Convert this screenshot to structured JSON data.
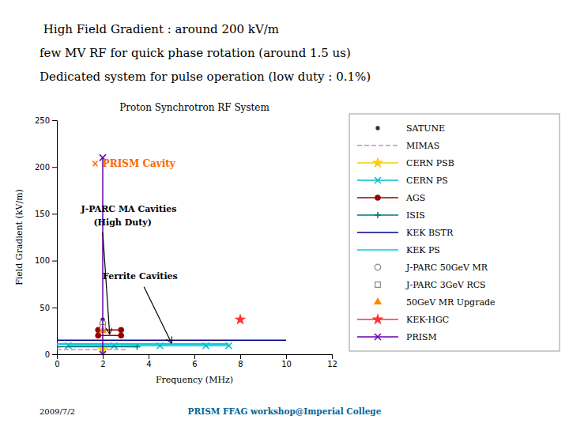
{
  "chart_data": {
    "type": "line",
    "title": "Proton Synchrotron RF System",
    "subtitle": [
      " High Field Gradient : around 200 kV/m",
      "few MV RF for quick phase rotation (around 1.5 us)",
      "Dedicated system for pulse operation (low duty : 0.1%)"
    ],
    "footer": [
      "2009/7/2",
      "PRISM FFAG workshop@Imperial College"
    ],
    "x_label": "Frequency (MHz)",
    "y_label": "Field Gradient (kV/m)",
    "xlim": [
      0,
      12
    ],
    "ylim": [
      0,
      250
    ],
    "xticks": [
      0,
      2,
      4,
      6,
      8,
      10,
      12
    ],
    "yticks": [
      0,
      50,
      100,
      150,
      200,
      250
    ],
    "grid": false,
    "legend": "right",
    "series": [
      {
        "name": "SATUNE",
        "color": "#333333",
        "marker": "point",
        "line_style": "none",
        "x": [
          2.0
        ],
        "values": [
          37
        ]
      },
      {
        "name": "MIMAS",
        "color": "#CC88CC",
        "marker": "none",
        "line_style": "dashed",
        "x": [
          0,
          3
        ],
        "values": [
          5,
          5
        ]
      },
      {
        "name": "CERN PSB",
        "color": "#FFCC00",
        "marker": "star",
        "line_style": "solid",
        "x": [
          2.0
        ],
        "values": [
          5
        ]
      },
      {
        "name": "CERN PS",
        "color": "#00BBCC",
        "marker": "x",
        "line_style": "solid",
        "x": [
          0.5,
          2.5,
          4.5,
          6.5,
          7.5
        ],
        "values": [
          9,
          9,
          9,
          9,
          9
        ]
      },
      {
        "name": "AGS",
        "color": "#990000",
        "marker": "circle",
        "line_style": "solid",
        "x": [
          1.8,
          2.8,
          null,
          1.8,
          2.8
        ],
        "values": [
          20,
          20,
          null,
          26,
          26
        ]
      },
      {
        "name": "ISIS",
        "color": "#007777",
        "marker": "plus",
        "line_style": "solid",
        "x": [
          0,
          3.5
        ],
        "values": [
          8,
          8
        ]
      },
      {
        "name": "KEK BSTR",
        "color": "#000088",
        "marker": "none",
        "line_style": "solid",
        "x": [
          0,
          10
        ],
        "values": [
          15,
          15
        ]
      },
      {
        "name": "KEK PS",
        "color": "#00CCDD",
        "marker": "none",
        "line_style": "solid",
        "x": [
          0,
          7.5
        ],
        "values": [
          11,
          11
        ]
      },
      {
        "name": "J-PARC 50GeV MR",
        "color": "#888888",
        "marker": "circle-open",
        "line_style": "none",
        "x": [
          2.0
        ],
        "values": [
          33
        ]
      },
      {
        "name": "J-PARC 3GeV RCS",
        "color": "#888888",
        "marker": "square-open",
        "line_style": "none",
        "x": [
          2.0
        ],
        "values": [
          29
        ]
      },
      {
        "name": "50GeV MR Upgrade",
        "color": "#FF8800",
        "marker": "triangle",
        "line_style": "none",
        "x": [
          2.0
        ],
        "values": [
          25
        ]
      },
      {
        "name": "KEK-HGC",
        "color": "#FF3333",
        "marker": "star",
        "line_style": "solid",
        "x": [
          8.0
        ],
        "values": [
          37
        ]
      },
      {
        "name": "PRISM",
        "color": "#6600AA",
        "marker": "x",
        "line_style": "solid",
        "x": [
          2.0,
          2.0
        ],
        "values": [
          0,
          210
        ]
      }
    ],
    "annotations": [
      {
        "text": "× PRISM Cavity",
        "x": 1.5,
        "y": 200,
        "color": "#FF6600"
      },
      {
        "text": "J-PARC MA Cavities",
        "x": 1.05,
        "y": 152
      },
      {
        "text": "(High Duty)",
        "x": 1.6,
        "y": 138,
        "arrow": {
          "from_x": 2.0,
          "from_y": 130,
          "x": 2.3,
          "y": 22
        }
      },
      {
        "text": "Ferrite Cavities",
        "x": 2.0,
        "y": 80,
        "arrow": {
          "from_x": 3.8,
          "from_y": 72,
          "x": 5.0,
          "y": 12
        }
      }
    ]
  }
}
